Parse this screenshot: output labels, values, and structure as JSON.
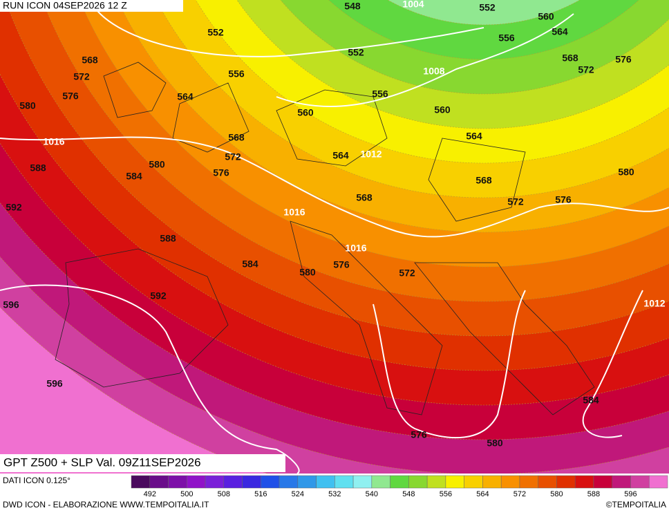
{
  "header": {
    "run": "RUN ICON 04SEP2026 12 Z"
  },
  "footer": {
    "title": "GPT Z500 + SLP Val. 09Z11SEP2026",
    "source": "DATI ICON 0.125°",
    "credit": "DWD ICON - ELABORAZIONE WWW.TEMPOITALIA.IT",
    "copyright": "©TEMPOITALIA"
  },
  "legend": {
    "ticks": [
      492,
      500,
      508,
      516,
      524,
      532,
      540,
      548,
      556,
      564,
      572,
      580,
      588,
      596
    ],
    "colors": [
      "#4b0a5e",
      "#6a0d8a",
      "#7d10a8",
      "#9012c8",
      "#7a20d8",
      "#5a20e0",
      "#3a28e0",
      "#2050e8",
      "#2878e8",
      "#3098e8",
      "#40c0f0",
      "#60e0f0",
      "#90f0f0",
      "#90e890",
      "#60d840",
      "#88d830",
      "#c0e020",
      "#f8f000",
      "#f8d000",
      "#f8b000",
      "#f89000",
      "#f07000",
      "#e85000",
      "#e03000",
      "#d81010",
      "#c8003a",
      "#c0187a",
      "#d040a0",
      "#f070d0"
    ]
  },
  "map": {
    "z500_labels": [
      548,
      552,
      560,
      552,
      564,
      556,
      552,
      568,
      568,
      556,
      572,
      572,
      576,
      556,
      576,
      564,
      580,
      560,
      560,
      564,
      568,
      572,
      564,
      588,
      580,
      576,
      584,
      568,
      580,
      568,
      572,
      576,
      592,
      588,
      584,
      580,
      576,
      572,
      592,
      596,
      596,
      584,
      576,
      580
    ],
    "slp_labels": [
      1004,
      1008,
      1012,
      1016,
      1016,
      1016,
      1012
    ]
  }
}
